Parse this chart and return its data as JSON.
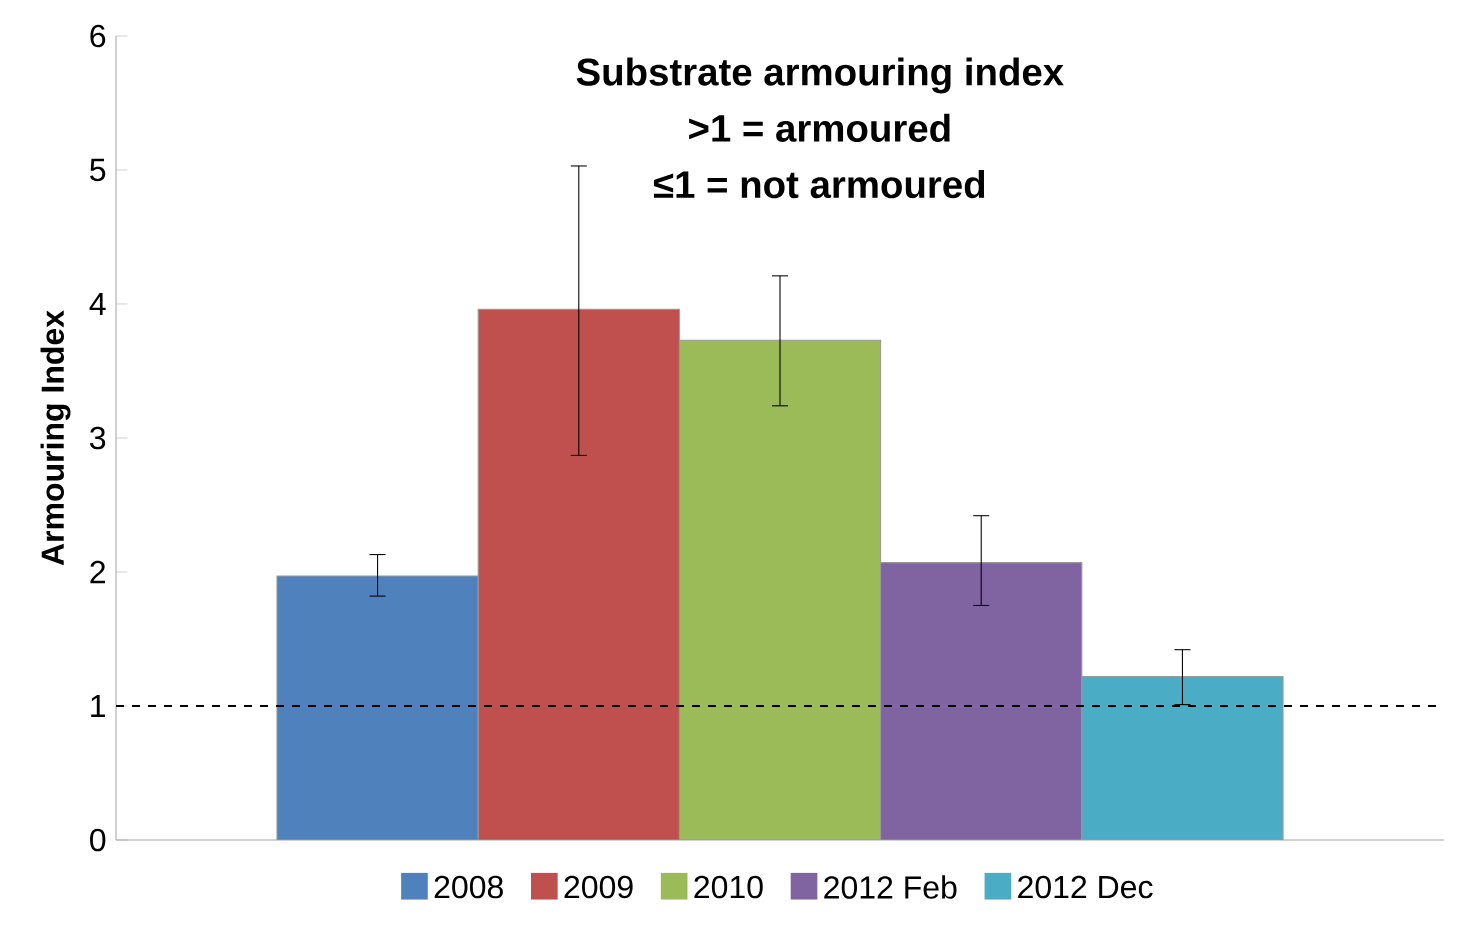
{
  "chart_data": {
    "type": "bar",
    "title": "Substrate armouring index",
    "annotations": [
      ">1 = armoured",
      "≤1 = not armoured"
    ],
    "ylabel": "Armouring Index",
    "categories": [
      null
    ],
    "series": [
      {
        "name": "2008",
        "color": "#4f81bd",
        "values": [
          1.97
        ],
        "errors": [
          [
            1.82,
            2.13
          ]
        ]
      },
      {
        "name": "2009",
        "color": "#c0504d",
        "values": [
          3.96
        ],
        "errors": [
          [
            2.87,
            5.03
          ]
        ]
      },
      {
        "name": "2010",
        "color": "#9bbb59",
        "values": [
          3.73
        ],
        "errors": [
          [
            3.24,
            4.21
          ]
        ]
      },
      {
        "name": "2012 Feb",
        "color": "#8064a2",
        "values": [
          2.07
        ],
        "errors": [
          [
            1.75,
            2.42
          ]
        ]
      },
      {
        "name": "2012 Dec",
        "color": "#4bacc6",
        "values": [
          1.22
        ],
        "errors": [
          [
            1.01,
            1.42
          ]
        ]
      }
    ],
    "ylim": [
      0,
      6
    ],
    "yticks": [
      0,
      1,
      2,
      3,
      4,
      5,
      6
    ],
    "ref_lines": [
      {
        "axis": "y",
        "value": 1,
        "line_style": "dashed"
      }
    ],
    "grid": false,
    "legend": "bottom",
    "tick_labels": "y"
  }
}
